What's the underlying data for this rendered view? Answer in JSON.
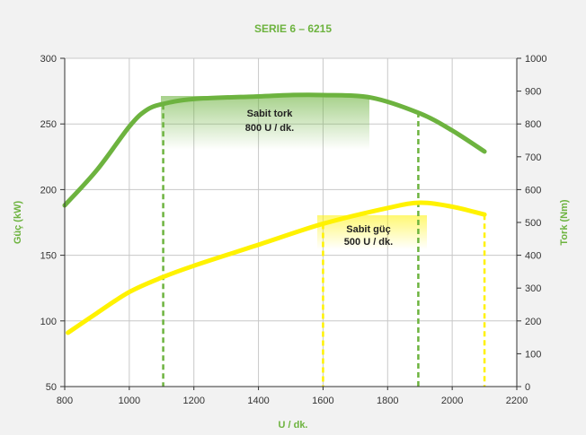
{
  "chart_data": {
    "type": "line",
    "title": "SERIE 6 – 6215",
    "xlabel": "U / dk.",
    "ylabel_left": "Güç (kW)",
    "ylabel_right": "Tork (Nm)",
    "xlim": [
      800,
      2200
    ],
    "ylim_left": [
      50,
      300
    ],
    "ylim_right": [
      0,
      1000
    ],
    "x_ticks": [
      "800",
      "1000",
      "1200",
      "1400",
      "1600",
      "1800",
      "2000",
      "2200"
    ],
    "y_left_ticks": [
      "50",
      "100",
      "150",
      "200",
      "250",
      "300"
    ],
    "y_right_ticks": [
      "0",
      "100",
      "200",
      "300",
      "400",
      "500",
      "600",
      "700",
      "800",
      "900",
      "1000"
    ],
    "grid": true,
    "series": [
      {
        "color": "#6db33f",
        "points": [
          [
            800,
            188
          ],
          [
            900,
            215
          ],
          [
            1000,
            248
          ],
          [
            1050,
            260
          ],
          [
            1100,
            265
          ],
          [
            1200,
            269
          ],
          [
            1400,
            271
          ],
          [
            1500,
            272
          ],
          [
            1600,
            272
          ],
          [
            1750,
            270
          ],
          [
            1900,
            258
          ],
          [
            2000,
            245
          ],
          [
            2100,
            229
          ]
        ]
      },
      {
        "color": "#fff200",
        "points": [
          [
            810,
            91
          ],
          [
            900,
            106
          ],
          [
            1000,
            122
          ],
          [
            1100,
            133
          ],
          [
            1200,
            142
          ],
          [
            1400,
            158
          ],
          [
            1600,
            174
          ],
          [
            1800,
            186
          ],
          [
            1900,
            190
          ],
          [
            2000,
            187
          ],
          [
            2100,
            181
          ]
        ]
      }
    ],
    "vertical_markers": [
      {
        "x": 1105,
        "y": 265,
        "color": "#6db33f"
      },
      {
        "x": 1895,
        "y": 259,
        "color": "#6db33f"
      },
      {
        "x": 1600,
        "y": 174,
        "color": "#fff200"
      },
      {
        "x": 2100,
        "y": 181,
        "color": "#fff200"
      }
    ],
    "annotations": [
      {
        "lines": [
          "Sabit tork",
          "800 U / dk."
        ],
        "color": "#6db33f"
      },
      {
        "lines": [
          "Sabit güç",
          "500 U / dk."
        ],
        "color": "#fff200"
      }
    ]
  }
}
